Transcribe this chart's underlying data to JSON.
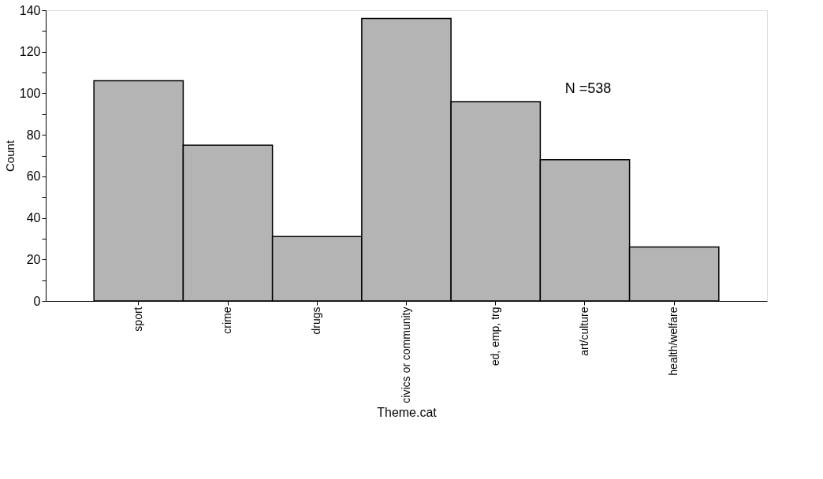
{
  "chart_data": {
    "type": "bar",
    "xlabel": "Theme.cat",
    "ylabel": "Count",
    "categories": [
      "sport",
      "crime",
      "drugs",
      "civics or community",
      "ed, emp, trg",
      "art/culture",
      "health/welfare"
    ],
    "values": [
      106,
      75,
      31,
      136,
      96,
      68,
      26
    ],
    "color": "#b4b4b4",
    "ylim": [
      0,
      140
    ],
    "yticks": [
      0,
      {
        "value": 10,
        "label": null
      },
      20,
      {
        "value": 30,
        "label": null
      },
      40,
      {
        "value": 50,
        "label": null
      },
      60,
      {
        "value": 70,
        "label": null
      },
      80,
      {
        "value": 90,
        "label": null
      },
      100,
      {
        "value": 110,
        "label": null
      },
      120,
      {
        "value": 130,
        "label": null
      },
      140
    ],
    "grid": false,
    "annotations": [
      "N =538"
    ]
  }
}
